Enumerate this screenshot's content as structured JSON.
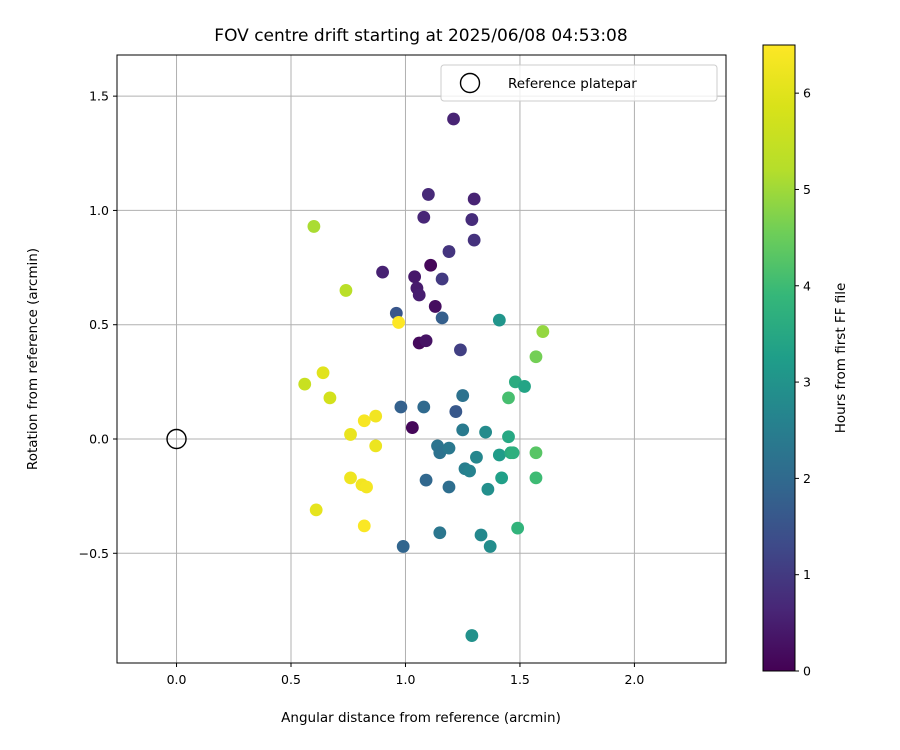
{
  "chart_data": {
    "type": "scatter",
    "title": "FOV centre drift starting at 2025/06/08 04:53:08",
    "xlabel": "Angular distance from reference (arcmin)",
    "ylabel": "Rotation from reference (arcmin)",
    "xlim": [
      -0.26,
      2.4
    ],
    "ylim": [
      -0.98,
      1.68
    ],
    "xticks": [
      0.0,
      0.5,
      1.0,
      1.5,
      2.0
    ],
    "xtick_labels": [
      "0.0",
      "0.5",
      "1.0",
      "1.5",
      "2.0"
    ],
    "yticks": [
      -0.5,
      0.0,
      0.5,
      1.0,
      1.5
    ],
    "ytick_labels": [
      "−0.5",
      "0.0",
      "0.5",
      "1.0",
      "1.5"
    ],
    "grid": true,
    "legend": {
      "placement": "top-right",
      "entries": [
        {
          "label": "Reference platepar",
          "marker": "open-circle"
        }
      ]
    },
    "reference_point": {
      "x": 0.0,
      "y": 0.0
    },
    "colorbar": {
      "label": "Hours from first FF file",
      "colormap": "viridis",
      "range": [
        0,
        6.5
      ],
      "ticks": [
        0,
        1,
        2,
        3,
        4,
        5,
        6
      ],
      "tick_labels": [
        "0",
        "1",
        "2",
        "3",
        "4",
        "5",
        "6"
      ]
    },
    "points": [
      {
        "x": 1.03,
        "y": 0.05,
        "c": 0.1
      },
      {
        "x": 1.06,
        "y": 0.42,
        "c": 0.15
      },
      {
        "x": 1.09,
        "y": 0.43,
        "c": 0.3
      },
      {
        "x": 1.13,
        "y": 0.58,
        "c": 0.2
      },
      {
        "x": 1.11,
        "y": 0.76,
        "c": 0.1
      },
      {
        "x": 1.04,
        "y": 0.71,
        "c": 0.4
      },
      {
        "x": 1.05,
        "y": 0.66,
        "c": 0.45
      },
      {
        "x": 1.06,
        "y": 0.63,
        "c": 0.5
      },
      {
        "x": 0.9,
        "y": 0.73,
        "c": 0.55
      },
      {
        "x": 1.08,
        "y": 0.97,
        "c": 0.65
      },
      {
        "x": 1.1,
        "y": 1.07,
        "c": 0.7
      },
      {
        "x": 1.3,
        "y": 1.05,
        "c": 0.6
      },
      {
        "x": 1.21,
        "y": 1.4,
        "c": 0.6
      },
      {
        "x": 1.29,
        "y": 0.96,
        "c": 0.75
      },
      {
        "x": 1.3,
        "y": 0.87,
        "c": 0.85
      },
      {
        "x": 1.19,
        "y": 0.82,
        "c": 0.9
      },
      {
        "x": 1.16,
        "y": 0.7,
        "c": 1.0
      },
      {
        "x": 1.24,
        "y": 0.39,
        "c": 1.1
      },
      {
        "x": 0.96,
        "y": 0.55,
        "c": 1.55
      },
      {
        "x": 1.16,
        "y": 0.53,
        "c": 1.75
      },
      {
        "x": 0.98,
        "y": 0.14,
        "c": 1.8
      },
      {
        "x": 1.08,
        "y": 0.14,
        "c": 2.0
      },
      {
        "x": 1.22,
        "y": 0.12,
        "c": 1.6
      },
      {
        "x": 1.25,
        "y": 0.19,
        "c": 2.2
      },
      {
        "x": 0.99,
        "y": -0.47,
        "c": 1.9
      },
      {
        "x": 1.09,
        "y": -0.18,
        "c": 1.95
      },
      {
        "x": 1.19,
        "y": -0.21,
        "c": 2.1
      },
      {
        "x": 1.14,
        "y": -0.03,
        "c": 2.25
      },
      {
        "x": 1.15,
        "y": -0.06,
        "c": 2.2
      },
      {
        "x": 1.19,
        "y": -0.04,
        "c": 2.35
      },
      {
        "x": 1.15,
        "y": -0.41,
        "c": 2.3
      },
      {
        "x": 1.25,
        "y": 0.04,
        "c": 2.4
      },
      {
        "x": 1.26,
        "y": -0.13,
        "c": 2.5
      },
      {
        "x": 1.28,
        "y": -0.14,
        "c": 2.6
      },
      {
        "x": 1.31,
        "y": -0.08,
        "c": 2.7
      },
      {
        "x": 1.35,
        "y": 0.03,
        "c": 2.8
      },
      {
        "x": 1.36,
        "y": -0.22,
        "c": 2.9
      },
      {
        "x": 1.33,
        "y": -0.42,
        "c": 2.75
      },
      {
        "x": 1.37,
        "y": -0.47,
        "c": 2.85
      },
      {
        "x": 1.29,
        "y": -0.86,
        "c": 2.95
      },
      {
        "x": 1.41,
        "y": 0.52,
        "c": 3.05
      },
      {
        "x": 1.41,
        "y": -0.07,
        "c": 3.2
      },
      {
        "x": 1.42,
        "y": -0.17,
        "c": 3.3
      },
      {
        "x": 1.45,
        "y": 0.01,
        "c": 3.5
      },
      {
        "x": 1.46,
        "y": -0.06,
        "c": 3.6
      },
      {
        "x": 1.47,
        "y": -0.06,
        "c": 3.7
      },
      {
        "x": 1.48,
        "y": 0.25,
        "c": 3.6
      },
      {
        "x": 1.52,
        "y": 0.23,
        "c": 3.4
      },
      {
        "x": 1.49,
        "y": -0.39,
        "c": 3.8
      },
      {
        "x": 1.57,
        "y": -0.17,
        "c": 4.0
      },
      {
        "x": 1.45,
        "y": 0.18,
        "c": 4.1
      },
      {
        "x": 1.57,
        "y": -0.06,
        "c": 4.3
      },
      {
        "x": 1.57,
        "y": 0.36,
        "c": 4.6
      },
      {
        "x": 1.6,
        "y": 0.47,
        "c": 4.9
      },
      {
        "x": 0.6,
        "y": 0.93,
        "c": 5.1
      },
      {
        "x": 0.74,
        "y": 0.65,
        "c": 5.3
      },
      {
        "x": 0.56,
        "y": 0.24,
        "c": 5.55
      },
      {
        "x": 0.67,
        "y": 0.18,
        "c": 5.75
      },
      {
        "x": 0.64,
        "y": 0.29,
        "c": 6.0
      },
      {
        "x": 0.61,
        "y": -0.31,
        "c": 6.1
      },
      {
        "x": 0.76,
        "y": 0.02,
        "c": 6.15
      },
      {
        "x": 0.76,
        "y": -0.17,
        "c": 6.25
      },
      {
        "x": 0.81,
        "y": -0.2,
        "c": 6.3
      },
      {
        "x": 0.83,
        "y": -0.21,
        "c": 6.35
      },
      {
        "x": 0.82,
        "y": 0.08,
        "c": 6.4
      },
      {
        "x": 0.87,
        "y": 0.1,
        "c": 6.3
      },
      {
        "x": 0.87,
        "y": -0.03,
        "c": 6.2
      },
      {
        "x": 0.82,
        "y": -0.38,
        "c": 6.45
      },
      {
        "x": 0.97,
        "y": 0.51,
        "c": 6.5
      }
    ]
  }
}
